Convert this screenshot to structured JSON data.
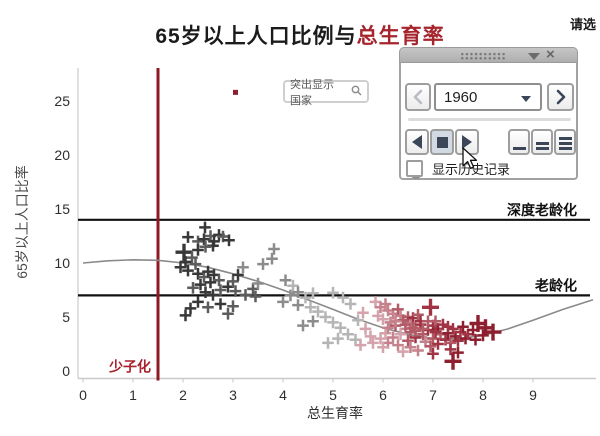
{
  "page": {
    "top_right_text": "请选"
  },
  "header": {
    "title_black": "65岁以上人口比例与",
    "title_red": "总生育率",
    "title_red_color": "#a6242c"
  },
  "search_box": {
    "label": "突出显示 国家",
    "icon": "magnifier-icon"
  },
  "panel": {
    "year": "1960",
    "history_label": "显示历史记录",
    "history_checked": false,
    "icons": [
      "grip-dots-icon",
      "collapse-triangle-icon",
      "close-x-icon",
      "prev-chevron-icon",
      "dropdown-caret-icon",
      "next-chevron-icon",
      "step-back-icon",
      "stop-icon",
      "play-icon",
      "speed-1-icon",
      "speed-2-icon",
      "speed-3-icon"
    ],
    "stop_button_pressed": true,
    "cursor_over": "play-button"
  },
  "chart_data": {
    "type": "scatter",
    "title": "65岁以上人口比例与总生育率",
    "xlabel": "总生育率",
    "ylabel": "65岁以上人口比率",
    "x_ticks": [
      0,
      1,
      2,
      3,
      4,
      5,
      6,
      7,
      8,
      9
    ],
    "y_ticks": [
      0,
      5,
      10,
      15,
      20,
      25
    ],
    "xlim": [
      0,
      10.2
    ],
    "ylim": [
      0,
      28
    ],
    "grid": false,
    "annotations": {
      "deep_aging_line": {
        "label": "深度老龄化",
        "y": 14,
        "color": "#111111"
      },
      "aging_line": {
        "label": "老龄化",
        "y": 7,
        "color": "#111111"
      },
      "low_fertility_line": {
        "label": "少子化",
        "x": 1.5,
        "color": "#8e1a22",
        "label_color": "#a6242c"
      }
    },
    "trend_curve": {
      "color": "#8a8a8a",
      "points": [
        [
          0,
          10.0
        ],
        [
          0.5,
          10.2
        ],
        [
          1,
          10.3
        ],
        [
          1.5,
          10.25
        ],
        [
          2,
          10.0
        ],
        [
          2.5,
          9.6
        ],
        [
          3,
          9.0
        ],
        [
          3.5,
          8.3
        ],
        [
          4,
          7.5
        ],
        [
          4.5,
          6.6
        ],
        [
          5,
          5.7
        ],
        [
          5.5,
          4.8
        ],
        [
          6,
          4.0
        ],
        [
          6.5,
          3.4
        ],
        [
          7,
          3.0
        ],
        [
          7.5,
          3.0
        ],
        [
          8,
          3.3
        ],
        [
          8.5,
          3.9
        ],
        [
          9,
          4.7
        ],
        [
          9.6,
          5.7
        ],
        [
          10.2,
          6.6
        ]
      ]
    },
    "palette": [
      "#383838",
      "#5c5c5c",
      "#8c8c8c",
      "#b5b5b5",
      "#d4a3ab",
      "#c5818c",
      "#b25a66",
      "#a03344",
      "#8e1f2f"
    ],
    "marker": "plus",
    "outlier_dot": {
      "x": 3.05,
      "y": 25.8,
      "color": "#8e1f2f"
    },
    "points": [
      [
        2.44,
        13.3,
        0
      ],
      [
        2.1,
        12.4,
        0
      ],
      [
        2.3,
        12.0,
        1
      ],
      [
        2.42,
        12.2,
        0
      ],
      [
        2.55,
        12.5,
        1
      ],
      [
        2.62,
        12.0,
        0
      ],
      [
        2.72,
        12.6,
        0
      ],
      [
        2.8,
        12.45,
        1
      ],
      [
        2.92,
        12.1,
        0
      ],
      [
        2.6,
        11.6,
        0
      ],
      [
        2.45,
        11.5,
        1
      ],
      [
        2.3,
        11.2,
        0
      ],
      [
        2.02,
        11.0,
        0,
        1
      ],
      [
        2.18,
        10.5,
        1
      ],
      [
        2.05,
        10.1,
        0
      ],
      [
        2.25,
        9.9,
        1
      ],
      [
        1.95,
        9.6,
        0
      ],
      [
        2.1,
        9.3,
        0
      ],
      [
        2.3,
        9.0,
        0
      ],
      [
        2.42,
        8.7,
        1
      ],
      [
        2.5,
        9.2,
        0
      ],
      [
        2.62,
        8.9,
        0
      ],
      [
        2.72,
        8.4,
        1
      ],
      [
        2.55,
        8.2,
        0
      ],
      [
        2.35,
        8.0,
        0
      ],
      [
        2.2,
        7.7,
        1
      ],
      [
        2.45,
        7.3,
        0
      ],
      [
        2.6,
        7.05,
        0
      ],
      [
        2.75,
        7.5,
        1
      ],
      [
        2.9,
        7.8,
        0
      ],
      [
        3.0,
        8.3,
        1
      ],
      [
        3.1,
        8.9,
        0
      ],
      [
        3.2,
        9.6,
        2
      ],
      [
        3.05,
        7.4,
        1
      ],
      [
        3.25,
        7.05,
        1
      ],
      [
        3.4,
        7.6,
        1
      ],
      [
        3.5,
        8.1,
        2
      ],
      [
        3.45,
        6.9,
        1
      ],
      [
        2.3,
        6.4,
        0
      ],
      [
        2.15,
        5.8,
        0
      ],
      [
        2.05,
        5.15,
        0
      ],
      [
        2.5,
        5.9,
        1
      ],
      [
        2.75,
        6.2,
        0
      ],
      [
        3.0,
        6.0,
        1
      ],
      [
        2.9,
        5.3,
        1
      ],
      [
        3.82,
        11.3,
        2
      ],
      [
        3.78,
        10.4,
        2
      ],
      [
        3.6,
        9.9,
        2
      ],
      [
        4.05,
        8.4,
        2
      ],
      [
        4.2,
        7.9,
        3
      ],
      [
        4.3,
        7.3,
        2
      ],
      [
        4.15,
        7.0,
        2
      ],
      [
        4.45,
        6.8,
        3
      ],
      [
        4.6,
        7.2,
        3
      ],
      [
        4.0,
        6.4,
        2
      ],
      [
        4.3,
        6.1,
        2
      ],
      [
        4.55,
        5.9,
        3
      ],
      [
        4.7,
        5.5,
        3
      ],
      [
        4.85,
        5.0,
        3
      ],
      [
        4.6,
        4.6,
        2
      ],
      [
        4.4,
        4.2,
        2
      ],
      [
        5.0,
        4.5,
        3
      ],
      [
        5.15,
        4.0,
        3
      ],
      [
        5.3,
        3.4,
        3
      ],
      [
        5.1,
        3.0,
        3
      ],
      [
        4.9,
        2.6,
        3
      ],
      [
        5.45,
        2.9,
        3
      ],
      [
        5.5,
        4.7,
        3
      ],
      [
        5.35,
        6.2,
        3
      ],
      [
        5.2,
        6.8,
        3
      ],
      [
        5.0,
        7.25,
        3
      ],
      [
        5.65,
        3.9,
        4
      ],
      [
        5.75,
        3.2,
        4
      ],
      [
        5.55,
        2.4,
        4
      ],
      [
        5.6,
        5.4,
        4
      ],
      [
        5.85,
        6.4,
        4
      ],
      [
        5.95,
        5.9,
        5
      ],
      [
        6.05,
        6.2,
        5
      ],
      [
        6.1,
        5.6,
        5
      ],
      [
        5.9,
        5.1,
        4
      ],
      [
        6.2,
        5.3,
        5
      ],
      [
        6.3,
        5.7,
        6
      ],
      [
        6.35,
        5.1,
        5
      ],
      [
        6.0,
        4.8,
        4
      ],
      [
        6.15,
        4.5,
        5
      ],
      [
        6.25,
        4.2,
        6
      ],
      [
        6.4,
        4.7,
        6
      ],
      [
        6.5,
        5.0,
        6
      ],
      [
        6.55,
        4.4,
        5
      ],
      [
        6.6,
        4.9,
        7
      ],
      [
        6.7,
        5.2,
        6
      ],
      [
        6.75,
        4.6,
        7
      ],
      [
        6.45,
        3.9,
        5
      ],
      [
        6.55,
        3.6,
        6
      ],
      [
        6.35,
        3.4,
        4
      ],
      [
        6.2,
        3.1,
        5
      ],
      [
        6.05,
        3.5,
        4
      ],
      [
        5.95,
        3.0,
        4
      ],
      [
        6.1,
        2.6,
        5
      ],
      [
        6.3,
        2.4,
        5
      ],
      [
        6.5,
        2.8,
        6
      ],
      [
        6.65,
        3.1,
        7
      ],
      [
        6.8,
        3.4,
        6
      ],
      [
        6.9,
        3.8,
        7
      ],
      [
        7.0,
        4.2,
        7
      ],
      [
        7.05,
        4.6,
        6
      ],
      [
        7.1,
        3.9,
        8
      ],
      [
        7.2,
        4.3,
        7
      ],
      [
        7.15,
        3.4,
        6
      ],
      [
        7.0,
        3.0,
        6
      ],
      [
        6.85,
        2.7,
        5
      ],
      [
        6.95,
        2.3,
        6
      ],
      [
        7.1,
        2.5,
        7
      ],
      [
        7.25,
        2.9,
        7
      ],
      [
        7.3,
        3.5,
        8
      ],
      [
        7.4,
        3.9,
        7
      ],
      [
        7.45,
        3.2,
        8
      ],
      [
        7.35,
        2.6,
        6
      ],
      [
        7.5,
        2.8,
        7
      ],
      [
        7.55,
        3.6,
        7
      ],
      [
        7.6,
        4.1,
        8
      ],
      [
        7.65,
        3.0,
        8
      ],
      [
        7.7,
        3.4,
        7
      ],
      [
        7.8,
        3.8,
        8
      ],
      [
        7.9,
        4.4,
        8,
        1
      ],
      [
        8.05,
        4.0,
        8,
        1
      ],
      [
        8.2,
        3.6,
        8,
        1
      ],
      [
        7.5,
        1.7,
        8
      ],
      [
        7.35,
        2.0,
        7
      ],
      [
        6.7,
        1.9,
        5
      ],
      [
        6.55,
        2.2,
        5
      ],
      [
        6.4,
        1.8,
        4
      ],
      [
        6.0,
        2.2,
        4
      ],
      [
        5.8,
        2.6,
        4
      ],
      [
        7.0,
        1.6,
        7
      ],
      [
        7.85,
        2.9,
        8
      ],
      [
        8.0,
        3.3,
        8
      ],
      [
        6.95,
        5.9,
        7,
        1
      ],
      [
        6.1,
        4.0,
        5
      ],
      [
        6.25,
        4.6,
        5
      ],
      [
        6.45,
        4.3,
        6
      ],
      [
        6.6,
        4.0,
        6
      ],
      [
        6.75,
        4.3,
        7
      ],
      [
        6.9,
        4.6,
        6
      ],
      [
        7.3,
        4.1,
        7
      ],
      [
        7.05,
        3.6,
        7
      ],
      [
        6.8,
        3.9,
        6
      ],
      [
        6.65,
        3.7,
        6
      ],
      [
        7.4,
        0.9,
        8,
        1
      ]
    ]
  }
}
